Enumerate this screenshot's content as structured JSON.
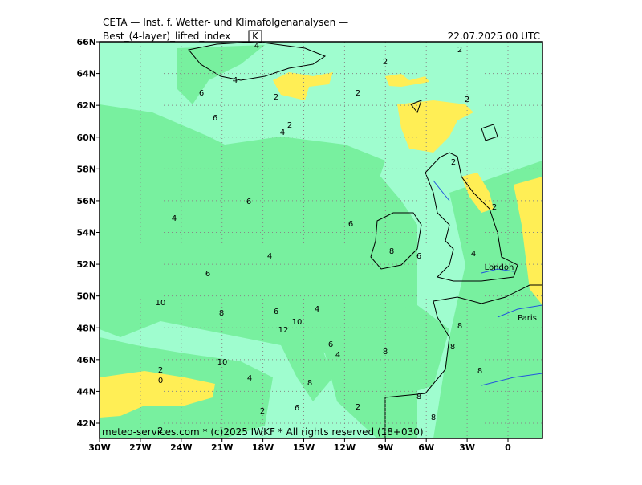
{
  "header": {
    "institute": "CETA — Inst. f. Wetter- und Klimafolgenanalysen —",
    "title": "Best_(4-layer)_lifted_index",
    "unit": "K",
    "valid_time": "22.07.2025 00 UTC"
  },
  "footer": "meteo-services.com * (c)2025 IWKF * All rights reserved (18+030)",
  "lon_ticks": [
    {
      "value": -30,
      "label": "30W"
    },
    {
      "value": -27,
      "label": "27W"
    },
    {
      "value": -24,
      "label": "24W"
    },
    {
      "value": -21,
      "label": "21W"
    },
    {
      "value": -18,
      "label": "18W"
    },
    {
      "value": -15,
      "label": "15W"
    },
    {
      "value": -12,
      "label": "12W"
    },
    {
      "value": -9,
      "label": "9W"
    },
    {
      "value": -6,
      "label": "6W"
    },
    {
      "value": -3,
      "label": "3W"
    },
    {
      "value": 0,
      "label": "0"
    }
  ],
  "lat_ticks": [
    {
      "value": 66,
      "label": "66N"
    },
    {
      "value": 64,
      "label": "64N"
    },
    {
      "value": 62,
      "label": "62N"
    },
    {
      "value": 60,
      "label": "60N"
    },
    {
      "value": 58,
      "label": "58N"
    },
    {
      "value": 56,
      "label": "56N"
    },
    {
      "value": 54,
      "label": "54N"
    },
    {
      "value": 52,
      "label": "52N"
    },
    {
      "value": 50,
      "label": "50N"
    },
    {
      "value": 48,
      "label": "48N"
    },
    {
      "value": 46,
      "label": "46N"
    },
    {
      "value": 44,
      "label": "44N"
    },
    {
      "value": 42,
      "label": "42N"
    }
  ],
  "cities": [
    "London",
    "Paris"
  ],
  "contour_labels": [
    4,
    2,
    2,
    4,
    6,
    2,
    2,
    2,
    6,
    2,
    4,
    2,
    6,
    2,
    4,
    6,
    8,
    6,
    4,
    4,
    6,
    10,
    4,
    6,
    8,
    10,
    12,
    8,
    6,
    4,
    8,
    8,
    10,
    2,
    0,
    4,
    8,
    8,
    8,
    2,
    2,
    6,
    8,
    2
  ]
}
